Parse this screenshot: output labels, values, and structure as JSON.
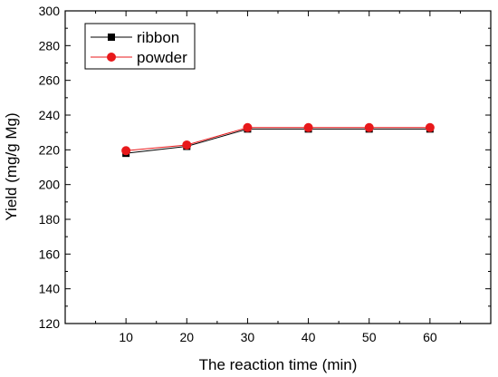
{
  "chart_data": {
    "type": "line",
    "title": "",
    "xlabel": "The reaction time (min)",
    "ylabel": "Yield (mg/g Mg)",
    "x": [
      10,
      20,
      30,
      40,
      50,
      60
    ],
    "xlim": [
      0,
      70
    ],
    "ylim": [
      120,
      300
    ],
    "xticks": [
      "10",
      "20",
      "30",
      "40",
      "50",
      "60"
    ],
    "yticks": [
      "120",
      "140",
      "160",
      "180",
      "200",
      "220",
      "240",
      "260",
      "280",
      "300"
    ],
    "grid": false,
    "legend_position": "top-left",
    "series": [
      {
        "name": "ribbon",
        "values": [
          218,
          222,
          232,
          232,
          232,
          232
        ],
        "color": "#000000",
        "marker": "square"
      },
      {
        "name": "powder",
        "values": [
          219.5,
          222.8,
          232.8,
          232.8,
          232.8,
          232.8
        ],
        "color": "#e8191b",
        "marker": "circle"
      }
    ]
  }
}
